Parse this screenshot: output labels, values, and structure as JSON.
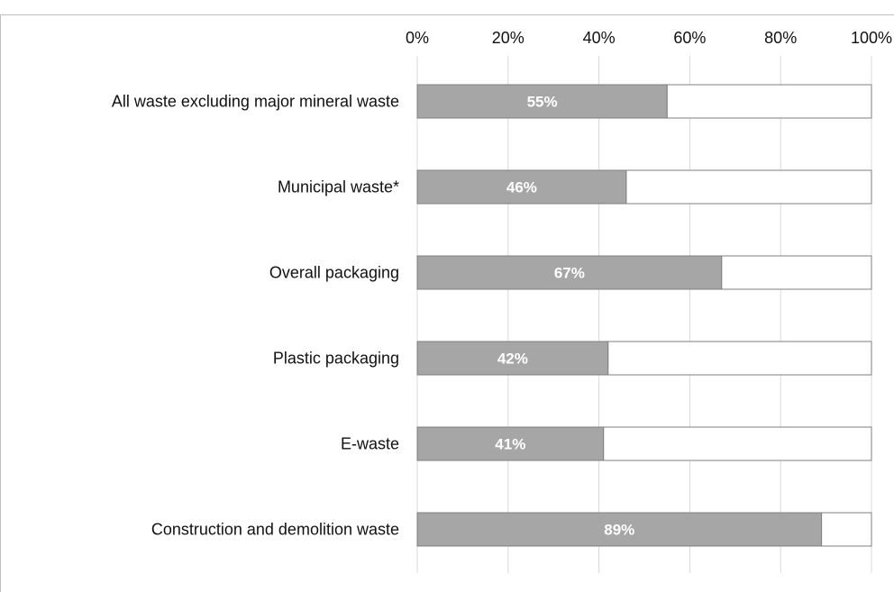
{
  "chart_data": {
    "type": "bar",
    "orientation": "horizontal",
    "stacked_to_100": true,
    "categories": [
      "All waste excluding major mineral waste",
      "Municipal waste*",
      "Overall packaging",
      "Plastic packaging",
      "E-waste",
      "Construction and demolition waste"
    ],
    "values": [
      55,
      46,
      67,
      42,
      41,
      89
    ],
    "value_labels": [
      "55%",
      "46%",
      "67%",
      "42%",
      "41%",
      "89%"
    ],
    "x_ticks": [
      "0%",
      "20%",
      "40%",
      "60%",
      "80%",
      "100%"
    ],
    "xlim": [
      0,
      100
    ],
    "x_axis_position": "top",
    "grid": true,
    "legend": "none",
    "colors": {
      "filled": "#a6a6a6",
      "remainder": "#ffffff",
      "bar_border": "#7f7f7f",
      "grid": "#d9d9d9"
    }
  }
}
